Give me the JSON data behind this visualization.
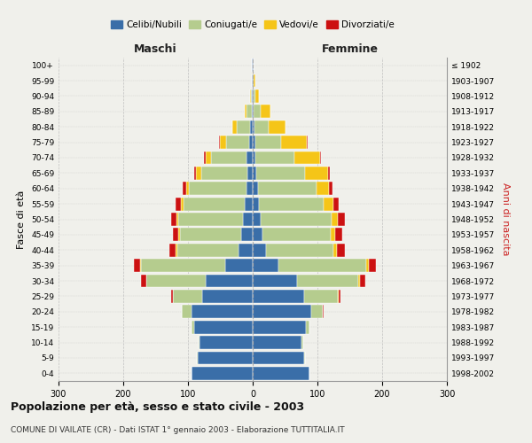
{
  "age_groups": [
    "0-4",
    "5-9",
    "10-14",
    "15-19",
    "20-24",
    "25-29",
    "30-34",
    "35-39",
    "40-44",
    "45-49",
    "50-54",
    "55-59",
    "60-64",
    "65-69",
    "70-74",
    "75-79",
    "80-84",
    "85-89",
    "90-94",
    "95-99",
    "100+"
  ],
  "birth_years": [
    "1998-2002",
    "1993-1997",
    "1988-1992",
    "1983-1987",
    "1978-1982",
    "1973-1977",
    "1968-1972",
    "1963-1967",
    "1958-1962",
    "1953-1957",
    "1948-1952",
    "1943-1947",
    "1938-1942",
    "1933-1937",
    "1928-1932",
    "1923-1927",
    "1918-1922",
    "1913-1917",
    "1908-1912",
    "1903-1907",
    "≤ 1902"
  ],
  "males": {
    "celibe": [
      95,
      85,
      82,
      90,
      95,
      78,
      72,
      42,
      22,
      18,
      15,
      12,
      10,
      8,
      10,
      6,
      4,
      2,
      1,
      1,
      1
    ],
    "coniugato": [
      0,
      1,
      2,
      5,
      14,
      45,
      92,
      130,
      95,
      95,
      100,
      95,
      88,
      72,
      55,
      35,
      20,
      8,
      2,
      1,
      0
    ],
    "vedovo": [
      0,
      0,
      0,
      0,
      0,
      0,
      1,
      2,
      2,
      2,
      3,
      4,
      5,
      8,
      8,
      10,
      8,
      3,
      1,
      0,
      0
    ],
    "divorziato": [
      0,
      0,
      0,
      0,
      1,
      3,
      8,
      10,
      10,
      8,
      8,
      8,
      5,
      3,
      2,
      1,
      0,
      0,
      0,
      0,
      0
    ]
  },
  "females": {
    "nubile": [
      88,
      80,
      76,
      82,
      90,
      80,
      68,
      40,
      20,
      15,
      12,
      10,
      8,
      6,
      4,
      4,
      3,
      2,
      1,
      1,
      1
    ],
    "coniugata": [
      0,
      1,
      2,
      6,
      18,
      52,
      95,
      135,
      105,
      105,
      110,
      100,
      90,
      75,
      60,
      40,
      22,
      10,
      3,
      1,
      0
    ],
    "vedova": [
      0,
      0,
      0,
      0,
      0,
      1,
      3,
      5,
      5,
      8,
      10,
      15,
      20,
      35,
      40,
      40,
      25,
      15,
      5,
      2,
      1
    ],
    "divorziata": [
      0,
      0,
      0,
      0,
      1,
      3,
      8,
      10,
      12,
      10,
      10,
      8,
      5,
      3,
      2,
      1,
      0,
      0,
      0,
      0,
      0
    ]
  },
  "colors": {
    "celibe": "#3a6ea8",
    "coniugato": "#b5cc8e",
    "vedovo": "#f5c518",
    "divorziato": "#cc1111"
  },
  "xlim": 300,
  "title": "Popolazione per età, sesso e stato civile - 2003",
  "subtitle": "COMUNE DI VAILATE (CR) - Dati ISTAT 1° gennaio 2003 - Elaborazione TUTTITALIA.IT",
  "ylabel_left": "Fasce di età",
  "ylabel_right": "Anni di nascita",
  "xlabel_left": "Maschi",
  "xlabel_right": "Femmine",
  "legend_labels": [
    "Celibi/Nubili",
    "Coniugati/e",
    "Vedovi/e",
    "Divorziati/e"
  ],
  "bg_color": "#f0f0eb",
  "bar_height": 0.85
}
